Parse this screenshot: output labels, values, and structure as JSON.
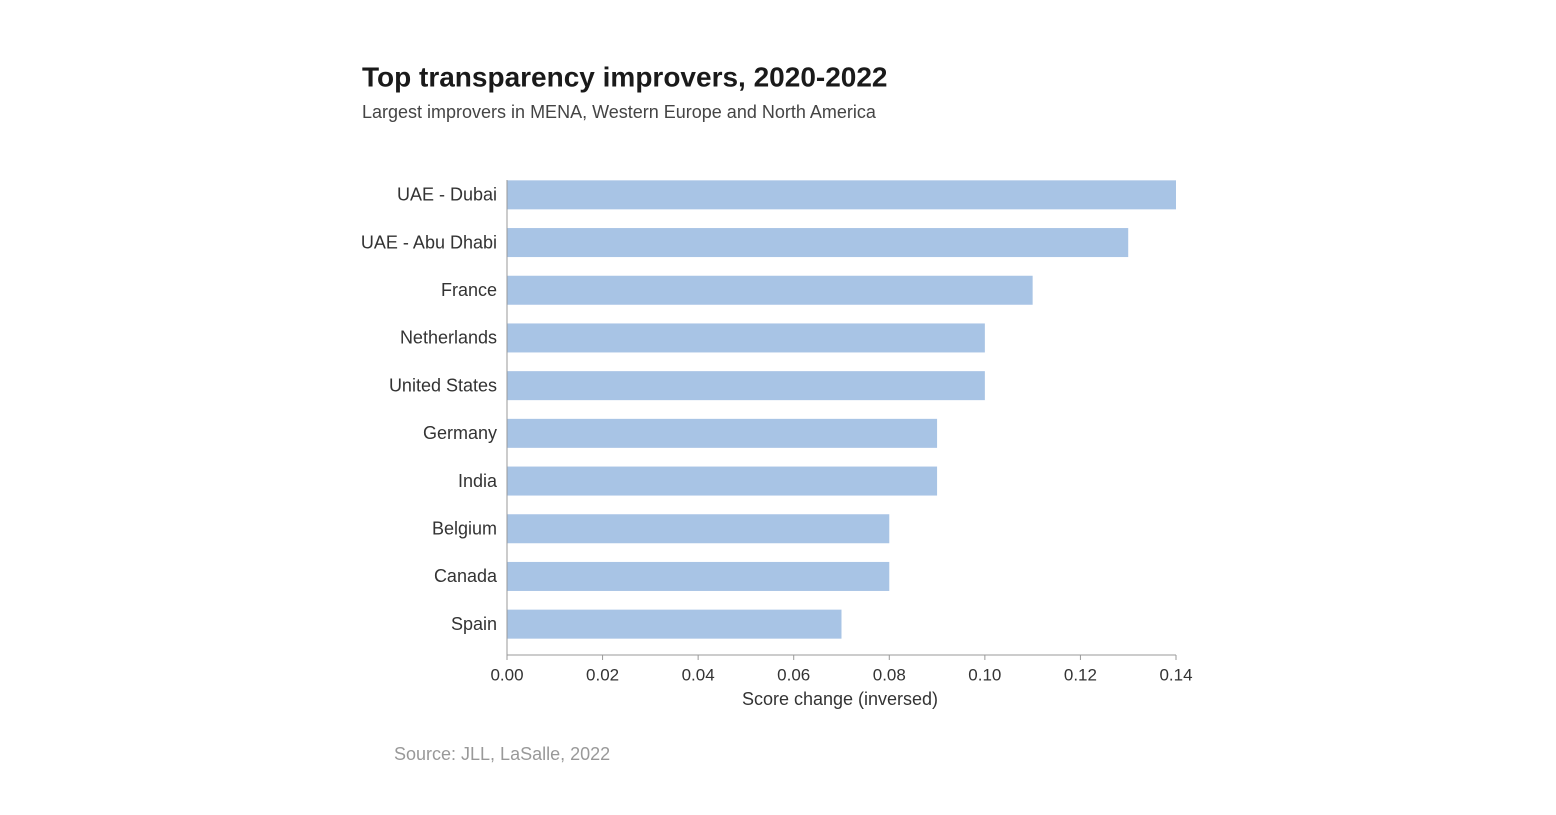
{
  "chart_data": {
    "type": "bar",
    "orientation": "horizontal",
    "title": "Top transparency improvers, 2020-2022",
    "subtitle": "Largest improvers in MENA, Western Europe and North America",
    "categories": [
      "UAE - Dubai",
      "UAE - Abu Dhabi",
      "France",
      "Netherlands",
      "United States",
      "Germany",
      "India",
      "Belgium",
      "Canada",
      "Spain"
    ],
    "values": [
      0.14,
      0.13,
      0.11,
      0.1,
      0.1,
      0.09,
      0.09,
      0.08,
      0.08,
      0.07
    ],
    "color": "#a8c4e5",
    "xlim": [
      0,
      0.14
    ],
    "xticks": [
      {
        "value": 0,
        "label": "0.00"
      },
      0.02,
      0.04,
      0.06,
      0.08,
      {
        "value": 0.1,
        "label": "0.10"
      },
      0.12,
      0.14
    ],
    "x_label": "Score change (inversed)",
    "source": "Source: JLL, LaSalle, 2022",
    "grid": false
  }
}
